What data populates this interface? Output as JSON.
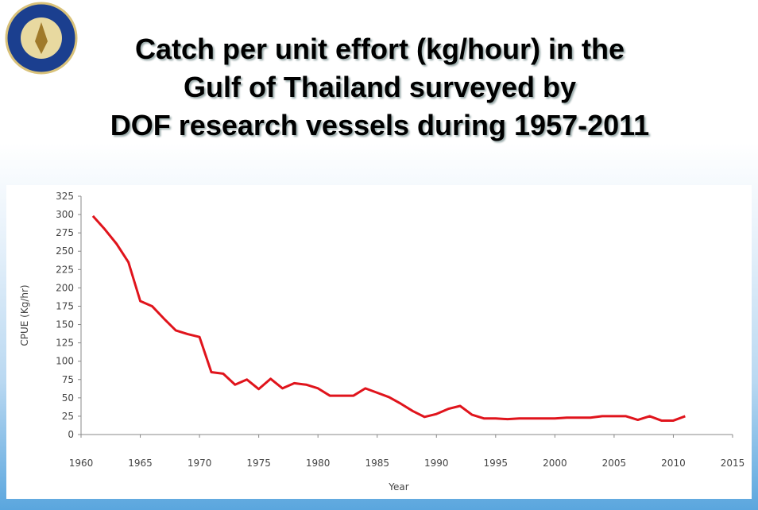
{
  "title_lines": [
    "Catch per unit effort (kg/hour) in the",
    "Gulf of Thailand surveyed by",
    "DOF research vessels during 1957-2011"
  ],
  "chart_data": {
    "type": "line",
    "x_label": "Year",
    "y_label": "CPUE (Kg/hr)",
    "color": "#e0141c",
    "x": [
      1961,
      1962,
      1963,
      1964,
      1965,
      1966,
      1967,
      1968,
      1969,
      1970,
      1971,
      1972,
      1973,
      1974,
      1975,
      1976,
      1977,
      1978,
      1979,
      1980,
      1981,
      1982,
      1983,
      1984,
      1985,
      1986,
      1987,
      1988,
      1989,
      1990,
      1991,
      1992,
      1993,
      1994,
      1995,
      1996,
      1997,
      1998,
      1999,
      2000,
      2001,
      2002,
      2003,
      2004,
      2005,
      2006,
      2007,
      2008,
      2009,
      2010,
      2011
    ],
    "values": [
      298,
      280,
      260,
      235,
      182,
      175,
      158,
      142,
      137,
      133,
      85,
      83,
      68,
      75,
      62,
      76,
      63,
      70,
      68,
      63,
      53,
      53,
      53,
      63,
      57,
      51,
      42,
      32,
      24,
      28,
      35,
      39,
      27,
      22,
      22,
      21,
      22,
      22,
      22,
      22,
      23,
      23,
      23,
      25,
      25,
      25,
      20,
      25,
      19,
      19,
      25
    ],
    "xlim": [
      1960,
      2015
    ],
    "xticks": [
      1960,
      1965,
      1970,
      1975,
      1980,
      1985,
      1990,
      1995,
      2000,
      2005,
      2010,
      2015
    ],
    "ylim": [
      0,
      325
    ],
    "yticks": [
      0,
      25,
      50,
      75,
      100,
      125,
      150,
      175,
      200,
      225,
      250,
      275,
      300,
      325
    ],
    "grid": false
  }
}
